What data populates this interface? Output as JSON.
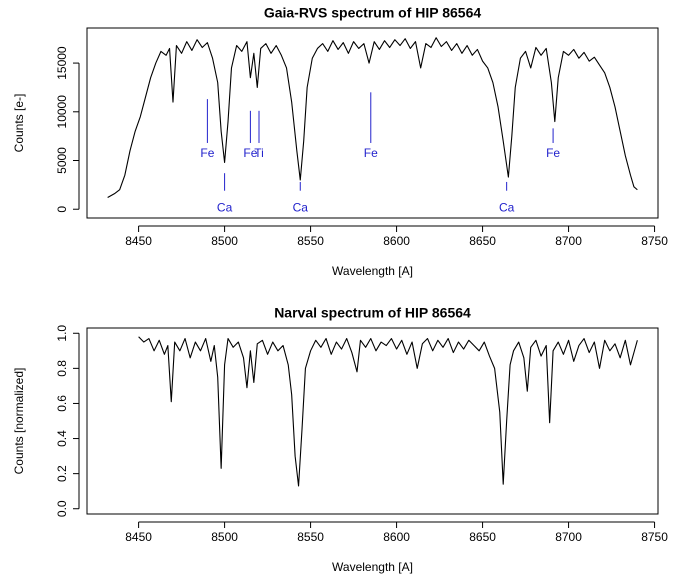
{
  "chart_data": [
    {
      "type": "line",
      "title": "Gaia-RVS spectrum of HIP 86564",
      "x_label": "Wavelength [A]",
      "y_label": "Counts [e-]",
      "color": "#000000",
      "xlim": [
        8420,
        8752
      ],
      "ylim": [
        -900,
        18600
      ],
      "xticks": [
        8450,
        8500,
        8550,
        8600,
        8650,
        8700,
        8750
      ],
      "yticks": [
        0,
        5000,
        10000,
        15000
      ],
      "x": [
        8432,
        8436,
        8439,
        8442,
        8445,
        8448,
        8451,
        8454,
        8457,
        8460,
        8463,
        8466,
        8468,
        8470,
        8472,
        8475,
        8478,
        8481,
        8484,
        8487,
        8490,
        8493,
        8496,
        8498,
        8500,
        8502,
        8504,
        8507,
        8510,
        8513,
        8515,
        8517,
        8519,
        8521,
        8524,
        8527,
        8530,
        8533,
        8536,
        8539,
        8542,
        8544,
        8546,
        8548,
        8551,
        8554,
        8557,
        8560,
        8563,
        8566,
        8569,
        8572,
        8575,
        8578,
        8581,
        8584,
        8587,
        8590,
        8593,
        8596,
        8599,
        8602,
        8605,
        8608,
        8611,
        8614,
        8617,
        8620,
        8623,
        8626,
        8629,
        8632,
        8635,
        8638,
        8641,
        8644,
        8647,
        8650,
        8653,
        8656,
        8659,
        8662,
        8665,
        8667,
        8669,
        8672,
        8675,
        8678,
        8681,
        8684,
        8687,
        8690,
        8692,
        8694,
        8697,
        8700,
        8703,
        8706,
        8709,
        8712,
        8715,
        8718,
        8721,
        8724,
        8727,
        8730,
        8733,
        8736,
        8738,
        8740
      ],
      "values": [
        1200,
        1600,
        2000,
        3500,
        6000,
        8000,
        9500,
        11500,
        13500,
        15000,
        16200,
        15800,
        16500,
        11000,
        16800,
        16000,
        17200,
        16300,
        17400,
        16600,
        17100,
        15500,
        13000,
        8000,
        4800,
        9000,
        14500,
        16800,
        16200,
        17200,
        13500,
        16000,
        12500,
        16500,
        17000,
        16000,
        16800,
        15800,
        14500,
        11000,
        6000,
        3000,
        7000,
        12500,
        15500,
        16500,
        17000,
        16200,
        17300,
        16400,
        17100,
        16000,
        17200,
        16500,
        17000,
        15000,
        17200,
        16400,
        17300,
        16600,
        17400,
        16800,
        17500,
        16500,
        17200,
        14500,
        17000,
        16600,
        17600,
        16700,
        17200,
        16300,
        17000,
        16000,
        16800,
        15800,
        16400,
        15200,
        14500,
        13000,
        10500,
        7000,
        3300,
        7500,
        12500,
        15500,
        16200,
        14500,
        16600,
        15800,
        16500,
        13000,
        9000,
        13500,
        16200,
        15800,
        16400,
        15500,
        16100,
        15200,
        15600,
        14800,
        14000,
        12500,
        10500,
        8000,
        5500,
        3500,
        2300,
        2000
      ],
      "annotation_color": "#2222cc",
      "annotations": [
        {
          "text": "Fe",
          "x": 8490,
          "y": 5700,
          "line": [
            11300,
            6800
          ]
        },
        {
          "text": "Ca",
          "x": 8500,
          "y": 100,
          "line": [
            3700,
            1900
          ]
        },
        {
          "text": "Fe",
          "x": 8515,
          "y": 5700,
          "line": [
            10100,
            6800
          ]
        },
        {
          "text": "Ti",
          "x": 8520,
          "y": 5700,
          "line": [
            10100,
            6800
          ]
        },
        {
          "text": "Ca",
          "x": 8544,
          "y": 100,
          "line": [
            2800,
            1900
          ]
        },
        {
          "text": "Fe",
          "x": 8585,
          "y": 5700,
          "line": [
            12000,
            6800
          ]
        },
        {
          "text": "Ca",
          "x": 8664,
          "y": 100,
          "line": [
            2800,
            1900
          ]
        },
        {
          "text": "Fe",
          "x": 8691,
          "y": 5700,
          "line": [
            8300,
            6800
          ]
        }
      ]
    },
    {
      "type": "line",
      "title": "Narval spectrum of HIP 86564",
      "x_label": "Wavelength [A]",
      "y_label": "Counts [normalized]",
      "color": "#000000",
      "xlim": [
        8420,
        8752
      ],
      "ylim": [
        -0.03,
        1.03
      ],
      "xticks": [
        8450,
        8500,
        8550,
        8600,
        8650,
        8700,
        8750
      ],
      "yticks": [
        {
          "value": 0,
          "label": "0.0"
        },
        0.2,
        0.4,
        0.6,
        0.8,
        {
          "value": 1,
          "label": "1.0"
        }
      ],
      "x": [
        8450,
        8453,
        8456,
        8459,
        8462,
        8465,
        8467,
        8469,
        8471,
        8474,
        8477,
        8480,
        8483,
        8486,
        8489,
        8492,
        8494,
        8496,
        8498,
        8500,
        8502,
        8505,
        8508,
        8511,
        8513,
        8515,
        8517,
        8519,
        8522,
        8525,
        8528,
        8531,
        8534,
        8537,
        8539,
        8541,
        8543,
        8545,
        8547,
        8550,
        8553,
        8556,
        8559,
        8562,
        8565,
        8568,
        8571,
        8574,
        8577,
        8579,
        8582,
        8585,
        8588,
        8591,
        8594,
        8597,
        8600,
        8603,
        8606,
        8609,
        8612,
        8615,
        8618,
        8621,
        8624,
        8627,
        8630,
        8633,
        8636,
        8639,
        8642,
        8645,
        8648,
        8651,
        8654,
        8657,
        8660,
        8662,
        8664,
        8666,
        8668,
        8671,
        8674,
        8676,
        8678,
        8681,
        8684,
        8687,
        8689,
        8691,
        8694,
        8697,
        8700,
        8703,
        8706,
        8709,
        8712,
        8715,
        8718,
        8721,
        8724,
        8727,
        8730,
        8733,
        8736,
        8740
      ],
      "values": [
        0.98,
        0.95,
        0.97,
        0.9,
        0.96,
        0.88,
        0.93,
        0.61,
        0.95,
        0.9,
        0.97,
        0.86,
        0.95,
        0.9,
        0.97,
        0.84,
        0.93,
        0.75,
        0.23,
        0.82,
        0.97,
        0.92,
        0.95,
        0.86,
        0.69,
        0.9,
        0.72,
        0.94,
        0.96,
        0.88,
        0.95,
        0.9,
        0.93,
        0.82,
        0.65,
        0.3,
        0.13,
        0.45,
        0.8,
        0.9,
        0.96,
        0.92,
        0.97,
        0.88,
        0.95,
        0.91,
        0.97,
        0.89,
        0.78,
        0.96,
        0.92,
        0.97,
        0.9,
        0.95,
        0.93,
        0.97,
        0.91,
        0.96,
        0.88,
        0.95,
        0.8,
        0.94,
        0.97,
        0.9,
        0.96,
        0.92,
        0.97,
        0.89,
        0.95,
        0.91,
        0.96,
        0.93,
        0.9,
        0.95,
        0.87,
        0.8,
        0.55,
        0.14,
        0.5,
        0.82,
        0.9,
        0.95,
        0.86,
        0.67,
        0.92,
        0.96,
        0.87,
        0.93,
        0.49,
        0.9,
        0.95,
        0.88,
        0.96,
        0.84,
        0.93,
        0.97,
        0.89,
        0.95,
        0.8,
        0.96,
        0.9,
        0.94,
        0.86,
        0.96,
        0.82,
        0.96
      ]
    }
  ]
}
